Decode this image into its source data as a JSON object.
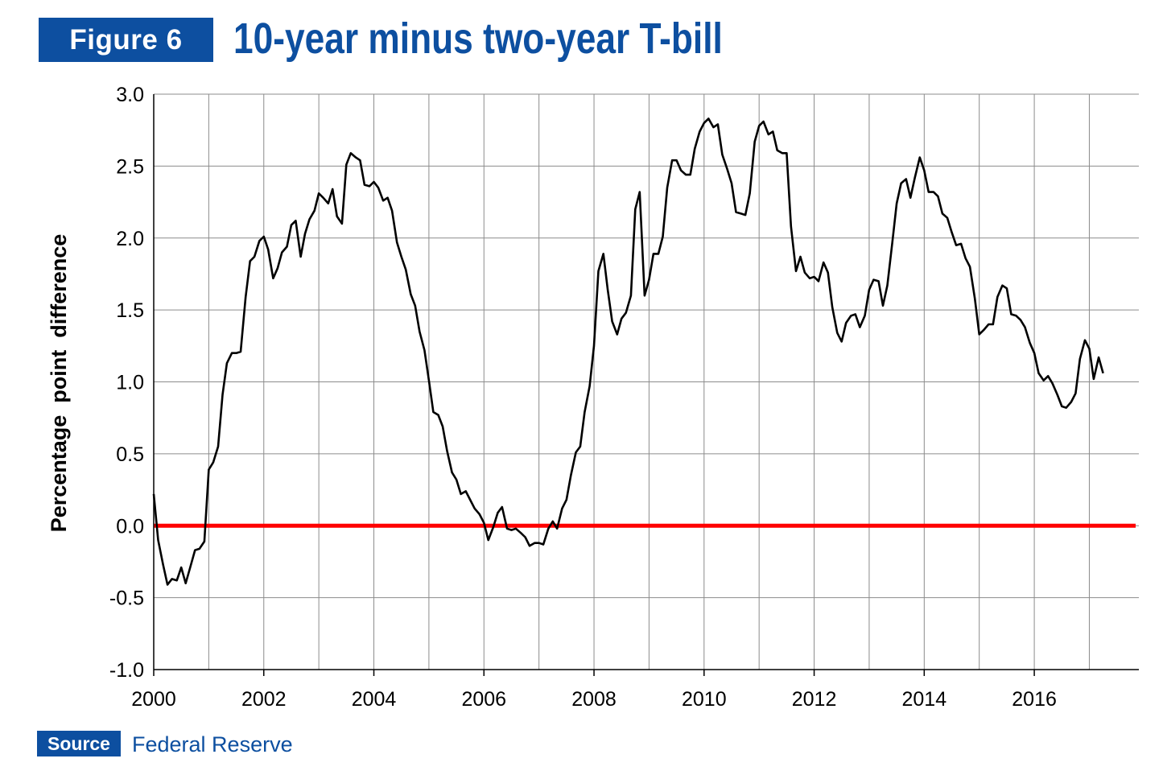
{
  "header": {
    "figure_label": "Figure 6",
    "title": "10-year minus two-year T-bill"
  },
  "footer": {
    "source_label": "Source",
    "source_text": "Federal Reserve"
  },
  "colors": {
    "brand_blue": "#0d4fa0",
    "series_line": "#000000",
    "zero_line": "#ff0000",
    "grid": "#8c8c8c"
  },
  "chart_data": {
    "type": "line",
    "title": "10-year minus two-year T-bill",
    "xlabel": "",
    "ylabel": "Percentage  point  difference",
    "xlim": [
      2000,
      2017.9
    ],
    "ylim": [
      -1.0,
      3.0
    ],
    "x_ticks": [
      2000,
      2002,
      2004,
      2006,
      2008,
      2010,
      2012,
      2014,
      2016
    ],
    "x_tick_labels": [
      "2000",
      "2002",
      "2004",
      "2006",
      "2008",
      "2010",
      "2012",
      "2014",
      "2016"
    ],
    "y_ticks": [
      -1.0,
      -0.5,
      0.0,
      0.5,
      1.0,
      1.5,
      2.0,
      2.5,
      3.0
    ],
    "y_tick_labels": [
      "-1.0",
      "-0.5",
      "0.0",
      "0.5",
      "1.0",
      "1.5",
      "2.0",
      "2.5",
      "3.0"
    ],
    "grid": true,
    "reference_line": {
      "y": 0.0
    },
    "series": [
      {
        "values": [
          [
            2000.0,
            0.22
          ],
          [
            2000.08,
            -0.1
          ],
          [
            2000.17,
            -0.27
          ],
          [
            2000.25,
            -0.41
          ],
          [
            2000.33,
            -0.37
          ],
          [
            2000.42,
            -0.38
          ],
          [
            2000.5,
            -0.29
          ],
          [
            2000.58,
            -0.4
          ],
          [
            2000.67,
            -0.28
          ],
          [
            2000.75,
            -0.17
          ],
          [
            2000.83,
            -0.16
          ],
          [
            2000.92,
            -0.11
          ],
          [
            2001.0,
            0.39
          ],
          [
            2001.08,
            0.44
          ],
          [
            2001.17,
            0.55
          ],
          [
            2001.25,
            0.91
          ],
          [
            2001.33,
            1.13
          ],
          [
            2001.42,
            1.2
          ],
          [
            2001.5,
            1.2
          ],
          [
            2001.58,
            1.21
          ],
          [
            2001.67,
            1.59
          ],
          [
            2001.75,
            1.84
          ],
          [
            2001.83,
            1.87
          ],
          [
            2001.92,
            1.98
          ],
          [
            2002.0,
            2.01
          ],
          [
            2002.08,
            1.92
          ],
          [
            2002.17,
            1.72
          ],
          [
            2002.25,
            1.79
          ],
          [
            2002.33,
            1.9
          ],
          [
            2002.42,
            1.94
          ],
          [
            2002.5,
            2.09
          ],
          [
            2002.58,
            2.12
          ],
          [
            2002.67,
            1.87
          ],
          [
            2002.75,
            2.03
          ],
          [
            2002.83,
            2.13
          ],
          [
            2002.92,
            2.19
          ],
          [
            2003.0,
            2.31
          ],
          [
            2003.08,
            2.28
          ],
          [
            2003.17,
            2.24
          ],
          [
            2003.25,
            2.34
          ],
          [
            2003.33,
            2.15
          ],
          [
            2003.42,
            2.1
          ],
          [
            2003.5,
            2.51
          ],
          [
            2003.58,
            2.59
          ],
          [
            2003.67,
            2.56
          ],
          [
            2003.75,
            2.54
          ],
          [
            2003.83,
            2.37
          ],
          [
            2003.92,
            2.36
          ],
          [
            2004.0,
            2.39
          ],
          [
            2004.08,
            2.35
          ],
          [
            2004.17,
            2.26
          ],
          [
            2004.25,
            2.28
          ],
          [
            2004.33,
            2.19
          ],
          [
            2004.42,
            1.97
          ],
          [
            2004.5,
            1.87
          ],
          [
            2004.58,
            1.78
          ],
          [
            2004.67,
            1.61
          ],
          [
            2004.75,
            1.53
          ],
          [
            2004.83,
            1.35
          ],
          [
            2004.92,
            1.22
          ],
          [
            2005.0,
            1.01
          ],
          [
            2005.08,
            0.79
          ],
          [
            2005.17,
            0.77
          ],
          [
            2005.25,
            0.69
          ],
          [
            2005.33,
            0.52
          ],
          [
            2005.42,
            0.37
          ],
          [
            2005.5,
            0.32
          ],
          [
            2005.58,
            0.22
          ],
          [
            2005.67,
            0.24
          ],
          [
            2005.75,
            0.18
          ],
          [
            2005.83,
            0.12
          ],
          [
            2005.92,
            0.08
          ],
          [
            2006.0,
            0.02
          ],
          [
            2006.08,
            -0.1
          ],
          [
            2006.17,
            -0.01
          ],
          [
            2006.25,
            0.09
          ],
          [
            2006.33,
            0.13
          ],
          [
            2006.42,
            -0.02
          ],
          [
            2006.5,
            -0.03
          ],
          [
            2006.58,
            -0.02
          ],
          [
            2006.67,
            -0.05
          ],
          [
            2006.75,
            -0.08
          ],
          [
            2006.83,
            -0.14
          ],
          [
            2006.92,
            -0.12
          ],
          [
            2007.0,
            -0.12
          ],
          [
            2007.08,
            -0.13
          ],
          [
            2007.17,
            -0.02
          ],
          [
            2007.25,
            0.03
          ],
          [
            2007.33,
            -0.02
          ],
          [
            2007.42,
            0.12
          ],
          [
            2007.5,
            0.18
          ],
          [
            2007.58,
            0.35
          ],
          [
            2007.67,
            0.51
          ],
          [
            2007.75,
            0.55
          ],
          [
            2007.83,
            0.79
          ],
          [
            2007.92,
            0.97
          ],
          [
            2008.0,
            1.25
          ],
          [
            2008.08,
            1.77
          ],
          [
            2008.17,
            1.89
          ],
          [
            2008.25,
            1.64
          ],
          [
            2008.33,
            1.42
          ],
          [
            2008.42,
            1.33
          ],
          [
            2008.5,
            1.44
          ],
          [
            2008.58,
            1.48
          ],
          [
            2008.67,
            1.6
          ],
          [
            2008.75,
            2.2
          ],
          [
            2008.83,
            2.32
          ],
          [
            2008.92,
            1.6
          ],
          [
            2009.0,
            1.71
          ],
          [
            2009.08,
            1.89
          ],
          [
            2009.17,
            1.89
          ],
          [
            2009.25,
            2.01
          ],
          [
            2009.33,
            2.35
          ],
          [
            2009.42,
            2.54
          ],
          [
            2009.5,
            2.54
          ],
          [
            2009.58,
            2.47
          ],
          [
            2009.67,
            2.44
          ],
          [
            2009.75,
            2.44
          ],
          [
            2009.83,
            2.62
          ],
          [
            2009.92,
            2.74
          ],
          [
            2010.0,
            2.8
          ],
          [
            2010.08,
            2.83
          ],
          [
            2010.17,
            2.77
          ],
          [
            2010.25,
            2.79
          ],
          [
            2010.33,
            2.58
          ],
          [
            2010.42,
            2.48
          ],
          [
            2010.5,
            2.38
          ],
          [
            2010.58,
            2.18
          ],
          [
            2010.67,
            2.17
          ],
          [
            2010.75,
            2.16
          ],
          [
            2010.83,
            2.31
          ],
          [
            2010.92,
            2.67
          ],
          [
            2011.0,
            2.78
          ],
          [
            2011.08,
            2.81
          ],
          [
            2011.17,
            2.72
          ],
          [
            2011.25,
            2.74
          ],
          [
            2011.33,
            2.61
          ],
          [
            2011.42,
            2.59
          ],
          [
            2011.5,
            2.59
          ],
          [
            2011.58,
            2.08
          ],
          [
            2011.67,
            1.77
          ],
          [
            2011.75,
            1.87
          ],
          [
            2011.83,
            1.76
          ],
          [
            2011.92,
            1.72
          ],
          [
            2012.0,
            1.73
          ],
          [
            2012.08,
            1.7
          ],
          [
            2012.17,
            1.83
          ],
          [
            2012.25,
            1.76
          ],
          [
            2012.33,
            1.52
          ],
          [
            2012.42,
            1.34
          ],
          [
            2012.5,
            1.28
          ],
          [
            2012.58,
            1.41
          ],
          [
            2012.67,
            1.46
          ],
          [
            2012.75,
            1.47
          ],
          [
            2012.83,
            1.38
          ],
          [
            2012.92,
            1.46
          ],
          [
            2013.0,
            1.64
          ],
          [
            2013.08,
            1.71
          ],
          [
            2013.17,
            1.7
          ],
          [
            2013.25,
            1.53
          ],
          [
            2013.33,
            1.67
          ],
          [
            2013.42,
            1.97
          ],
          [
            2013.5,
            2.24
          ],
          [
            2013.58,
            2.38
          ],
          [
            2013.67,
            2.41
          ],
          [
            2013.75,
            2.28
          ],
          [
            2013.83,
            2.42
          ],
          [
            2013.92,
            2.56
          ],
          [
            2014.0,
            2.47
          ],
          [
            2014.08,
            2.32
          ],
          [
            2014.17,
            2.32
          ],
          [
            2014.25,
            2.29
          ],
          [
            2014.33,
            2.17
          ],
          [
            2014.42,
            2.14
          ],
          [
            2014.5,
            2.04
          ],
          [
            2014.58,
            1.95
          ],
          [
            2014.67,
            1.96
          ],
          [
            2014.75,
            1.86
          ],
          [
            2014.83,
            1.8
          ],
          [
            2014.92,
            1.58
          ],
          [
            2015.0,
            1.33
          ],
          [
            2015.08,
            1.36
          ],
          [
            2015.17,
            1.4
          ],
          [
            2015.25,
            1.4
          ],
          [
            2015.33,
            1.59
          ],
          [
            2015.42,
            1.67
          ],
          [
            2015.5,
            1.65
          ],
          [
            2015.58,
            1.47
          ],
          [
            2015.67,
            1.46
          ],
          [
            2015.75,
            1.43
          ],
          [
            2015.83,
            1.38
          ],
          [
            2015.92,
            1.27
          ],
          [
            2016.0,
            1.2
          ],
          [
            2016.08,
            1.06
          ],
          [
            2016.17,
            1.01
          ],
          [
            2016.25,
            1.04
          ],
          [
            2016.33,
            0.99
          ],
          [
            2016.42,
            0.91
          ],
          [
            2016.5,
            0.83
          ],
          [
            2016.58,
            0.82
          ],
          [
            2016.67,
            0.86
          ],
          [
            2016.75,
            0.92
          ],
          [
            2016.83,
            1.16
          ],
          [
            2016.92,
            1.29
          ],
          [
            2017.0,
            1.23
          ],
          [
            2017.08,
            1.02
          ],
          [
            2017.17,
            1.17
          ],
          [
            2017.25,
            1.06
          ]
        ]
      }
    ]
  }
}
